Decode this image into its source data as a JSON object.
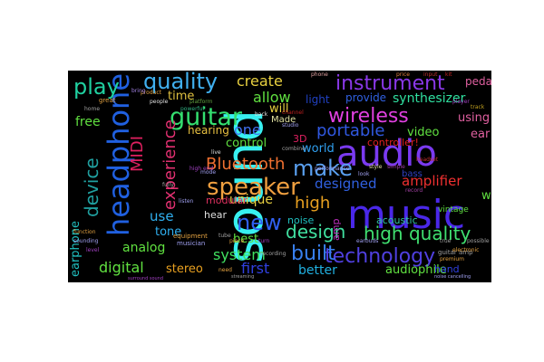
{
  "words": [
    {
      "text": "sound",
      "color": "#38f0f0"
    },
    {
      "text": "music",
      "color": "#4a28e8"
    },
    {
      "text": "audio",
      "color": "#7a3af0"
    },
    {
      "text": "headphone",
      "color": "#2060e0"
    },
    {
      "text": "guitar",
      "color": "#34e070"
    },
    {
      "text": "speaker",
      "color": "#f0a040"
    },
    {
      "text": "wireless",
      "color": "#e040e0"
    },
    {
      "text": "make",
      "color": "#5aa0f0"
    },
    {
      "text": "play",
      "color": "#20d0a0"
    },
    {
      "text": "quality",
      "color": "#40b0f0"
    },
    {
      "text": "instrument",
      "color": "#8a38e8"
    },
    {
      "text": "technology",
      "color": "#5040e0"
    },
    {
      "text": "new",
      "color": "#3060f0"
    },
    {
      "text": "design",
      "color": "#40e0a0"
    },
    {
      "text": "high quality",
      "color": "#40e070"
    },
    {
      "text": "built",
      "color": "#3880f0"
    },
    {
      "text": "device",
      "color": "#20a0a0"
    },
    {
      "text": "Bluetooth",
      "color": "#f07030"
    },
    {
      "text": "experience",
      "color": "#e03070"
    },
    {
      "text": "MIDI",
      "color": "#e02060"
    },
    {
      "text": "create",
      "color": "#e8d040"
    },
    {
      "text": "allow",
      "color": "#60e040"
    },
    {
      "text": "portable",
      "color": "#3058e0"
    },
    {
      "text": "synthesizer",
      "color": "#30e0a0"
    },
    {
      "text": "amplifier",
      "color": "#f03030"
    },
    {
      "text": "designed",
      "color": "#3060e0"
    },
    {
      "text": "system",
      "color": "#40e060"
    },
    {
      "text": "first",
      "color": "#3040e0"
    },
    {
      "text": "digital",
      "color": "#60e040"
    },
    {
      "text": "analog",
      "color": "#60e040"
    },
    {
      "text": "earphone",
      "color": "#20c0c0"
    },
    {
      "text": "stereo",
      "color": "#e8a020"
    },
    {
      "text": "better",
      "color": "#20b0e0"
    },
    {
      "text": "audiophile",
      "color": "#60e040"
    },
    {
      "text": "high",
      "color": "#e8a020"
    },
    {
      "text": "one",
      "color": "#4070f0"
    },
    {
      "text": "time",
      "color": "#e0c040"
    },
    {
      "text": "control",
      "color": "#60e040"
    },
    {
      "text": "world",
      "color": "#30a0f0"
    },
    {
      "text": "video",
      "color": "#60e040"
    },
    {
      "text": "unique",
      "color": "#e8d040"
    },
    {
      "text": "use",
      "color": "#30b0f0"
    },
    {
      "text": "best",
      "color": "#60e040"
    },
    {
      "text": "free",
      "color": "#60e040"
    },
    {
      "text": "tone",
      "color": "#30b0f0"
    },
    {
      "text": "ear",
      "color": "#e060a0"
    },
    {
      "text": "way",
      "color": "#60e040"
    },
    {
      "text": "using",
      "color": "#e060a0"
    },
    {
      "text": "light",
      "color": "#2040c0"
    },
    {
      "text": "will",
      "color": "#e8d040"
    },
    {
      "text": "provide",
      "color": "#3060e0"
    },
    {
      "text": "hearing",
      "color": "#e8c040"
    },
    {
      "text": "controller!",
      "color": "#e02020"
    },
    {
      "text": "acoustic",
      "color": "#30c0a0"
    },
    {
      "text": "hand",
      "color": "#3040e0"
    },
    {
      "text": "pedal",
      "color": "#e060a0"
    },
    {
      "text": "modular",
      "color": "#e03060"
    },
    {
      "text": "hear",
      "color": "#e0e0e0"
    },
    {
      "text": "noise",
      "color": "#20c0c0"
    },
    {
      "text": "amp",
      "color": "#c030c0"
    },
    {
      "text": "3D",
      "color": "#e02060"
    },
    {
      "text": "Made",
      "color": "#e0e0a0"
    },
    {
      "text": "bass",
      "color": "#3040c0"
    },
    {
      "text": "vintage",
      "color": "#60e040"
    },
    {
      "text": "guitar amp",
      "color": "#a0a0a0"
    },
    {
      "text": "musician",
      "color": "#a0a0f0"
    },
    {
      "text": "equipment",
      "color": "#e0a040"
    },
    {
      "text": "channel",
      "color": "#c02020"
    },
    {
      "text": "studio",
      "color": "#a0a0f0"
    },
    {
      "text": "record",
      "color": "#a040a0"
    },
    {
      "text": "style",
      "color": "#e0e0a0"
    },
    {
      "text": "price",
      "color": "#e08040"
    },
    {
      "text": "phone",
      "color": "#e0a0a0"
    },
    {
      "text": "input",
      "color": "#c03030"
    },
    {
      "text": "player",
      "color": "#a040c0"
    },
    {
      "text": "track",
      "color": "#c0a020"
    },
    {
      "text": "kit",
      "color": "#c02020"
    },
    {
      "text": "product",
      "color": "#e0a040"
    },
    {
      "text": "great",
      "color": "#e0a040"
    },
    {
      "text": "people",
      "color": "#e0e0e0"
    },
    {
      "text": "bring",
      "color": "#a080e0"
    },
    {
      "text": "platform",
      "color": "#60a040"
    },
    {
      "text": "powerful",
      "color": "#30b080"
    },
    {
      "text": "back",
      "color": "#e0e0e0"
    },
    {
      "text": "look",
      "color": "#a0a0f0"
    },
    {
      "text": "level",
      "color": "#a040c0"
    },
    {
      "text": "home",
      "color": "#a0a0a0"
    },
    {
      "text": "need",
      "color": "#e0a040"
    },
    {
      "text": "sounding",
      "color": "#a0a0f0"
    },
    {
      "text": "function",
      "color": "#e0a040"
    },
    {
      "text": "fully",
      "color": "#a0a0a0"
    },
    {
      "text": "true",
      "color": "#a0a0a0"
    },
    {
      "text": "possible",
      "color": "#a0a0a0"
    },
    {
      "text": "listen",
      "color": "#a0a0f0"
    },
    {
      "text": "piece",
      "color": "#e0a040"
    },
    {
      "text": "turn",
      "color": "#a040c0"
    },
    {
      "text": "mode",
      "color": "#a0a0f0"
    },
    {
      "text": "tube",
      "color": "#a0a0a0"
    },
    {
      "text": "high end",
      "color": "#a040c0"
    },
    {
      "text": "combine",
      "color": "#a0a0a0"
    },
    {
      "text": "live",
      "color": "#e0e0e0"
    },
    {
      "text": "performance",
      "color": "#a0a0f0"
    },
    {
      "text": "simple",
      "color": "#a040a0"
    },
    {
      "text": "electronic",
      "color": "#e0a040"
    },
    {
      "text": "premium",
      "color": "#e0a040"
    },
    {
      "text": "noise cancelling",
      "color": "#a0a0f0"
    },
    {
      "text": "surround sound",
      "color": "#a040c0"
    },
    {
      "text": "streaming",
      "color": "#a0a0a0"
    },
    {
      "text": "headset",
      "color": "#c03030"
    },
    {
      "text": "earbuds",
      "color": "#a0a0f0"
    },
    {
      "text": "recording",
      "color": "#a0a0a0"
    }
  ]
}
